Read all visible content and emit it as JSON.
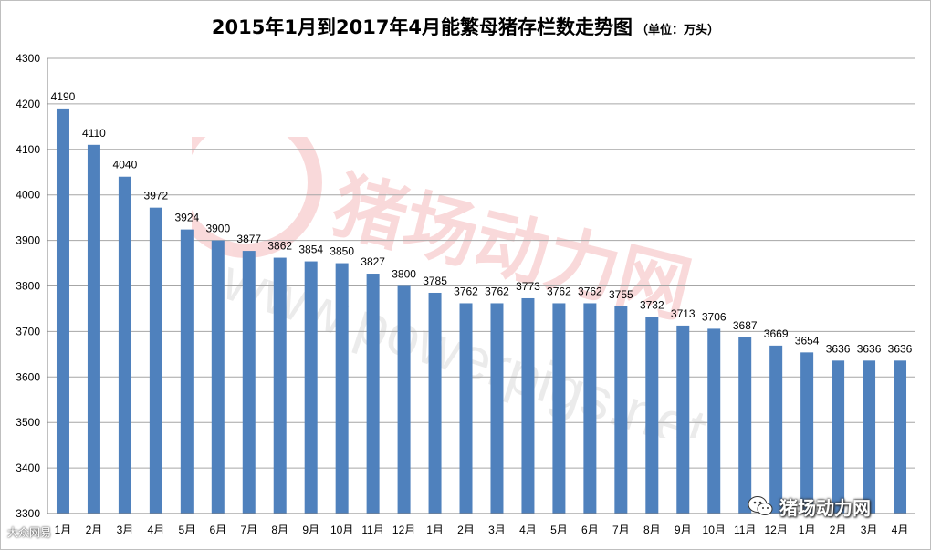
{
  "title": "2015年1月到2017年4月能繁母猪存栏数走势图",
  "unit_note": "（单位：万头）",
  "watermark": {
    "cn": "猪场动力网",
    "url": "www.powerpigs.net",
    "badge_text": "猪场动力网",
    "badge_icon": "wechat-icon",
    "corner_text": "大众网易"
  },
  "colors": {
    "bar": "#4f81bd",
    "grid": "#a6a6a6",
    "watermark": "#e8585a"
  },
  "chart_data": {
    "type": "bar",
    "title": "2015年1月到2017年4月能繁母猪存栏数走势图",
    "subtitle": "（单位：万头）",
    "xlabel": "",
    "ylabel": "",
    "ylim": [
      3300,
      4300
    ],
    "yticks": [
      3300,
      3400,
      3500,
      3600,
      3700,
      3800,
      3900,
      4000,
      4100,
      4200,
      4300
    ],
    "grid": true,
    "categories": [
      "1月",
      "2月",
      "3月",
      "4月",
      "5月",
      "6月",
      "7月",
      "8月",
      "9月",
      "10月",
      "11月",
      "12月",
      "1月",
      "2月",
      "3月",
      "4月",
      "5月",
      "6月",
      "7月",
      "8月",
      "9月",
      "10月",
      "11月",
      "12月",
      "1月",
      "2月",
      "3月",
      "4月"
    ],
    "values": [
      4190,
      4110,
      4040,
      3972,
      3924,
      3900,
      3877,
      3862,
      3854,
      3850,
      3827,
      3800,
      3785,
      3762,
      3762,
      3773,
      3762,
      3762,
      3755,
      3732,
      3713,
      3706,
      3687,
      3669,
      3654,
      3636,
      3636,
      3636
    ]
  }
}
